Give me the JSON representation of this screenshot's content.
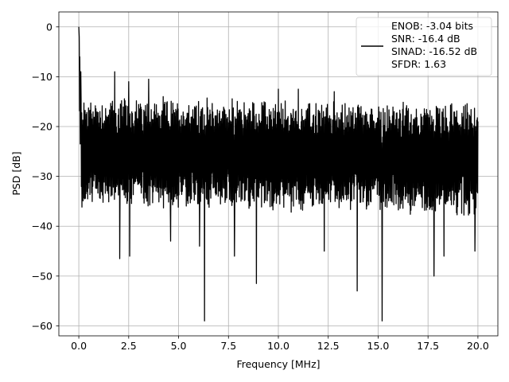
{
  "chart_data": {
    "type": "line",
    "title": "",
    "xlabel": "Frequency [MHz]",
    "ylabel": "PSD [dB]",
    "xlim": [
      -1.0,
      21.0
    ],
    "ylim": [
      -62.0,
      3.0
    ],
    "xticks": [
      0.0,
      2.5,
      5.0,
      7.5,
      10.0,
      12.5,
      15.0,
      17.5,
      20.0
    ],
    "xtick_labels": [
      "0.0",
      "2.5",
      "5.0",
      "7.5",
      "10.0",
      "12.5",
      "15.0",
      "17.5",
      "20.0"
    ],
    "yticks": [
      0,
      -10,
      -20,
      -30,
      -40,
      -50,
      -60
    ],
    "ytick_labels": [
      "0",
      "−10",
      "−20",
      "−30",
      "−40",
      "−50",
      "−60"
    ],
    "grid": true,
    "legend_position": "top-right",
    "legend_lines": [
      "ENOB: -3.04 bits",
      "SNR: -16.4 dB",
      "SINAD: -16.52 dB",
      "SFDR: 1.63"
    ],
    "line_color": "#000000",
    "series": [
      {
        "x_start": 0.0,
        "x_end": 20.0,
        "noise_band_db": [
          -15,
          -35
        ],
        "peaks": [
          {
            "x": 0.0,
            "y": 0
          },
          {
            "x": 0.02,
            "y": -2
          },
          {
            "x": 0.05,
            "y": -6
          },
          {
            "x": 0.1,
            "y": -9
          },
          {
            "x": 1.8,
            "y": -9
          },
          {
            "x": 2.5,
            "y": -11
          },
          {
            "x": 3.5,
            "y": -10.5
          },
          {
            "x": 10.0,
            "y": -12.5
          },
          {
            "x": 11.0,
            "y": -12.5
          },
          {
            "x": 12.8,
            "y": -13
          }
        ],
        "troughs": [
          {
            "x": 2.05,
            "y": -46.5
          },
          {
            "x": 2.55,
            "y": -46
          },
          {
            "x": 4.6,
            "y": -43
          },
          {
            "x": 6.05,
            "y": -44
          },
          {
            "x": 6.3,
            "y": -59
          },
          {
            "x": 7.8,
            "y": -46
          },
          {
            "x": 8.9,
            "y": -51.5
          },
          {
            "x": 12.3,
            "y": -45
          },
          {
            "x": 13.95,
            "y": -53
          },
          {
            "x": 15.2,
            "y": -59
          },
          {
            "x": 17.8,
            "y": -50
          },
          {
            "x": 18.3,
            "y": -46
          },
          {
            "x": 19.85,
            "y": -45
          }
        ]
      }
    ]
  }
}
